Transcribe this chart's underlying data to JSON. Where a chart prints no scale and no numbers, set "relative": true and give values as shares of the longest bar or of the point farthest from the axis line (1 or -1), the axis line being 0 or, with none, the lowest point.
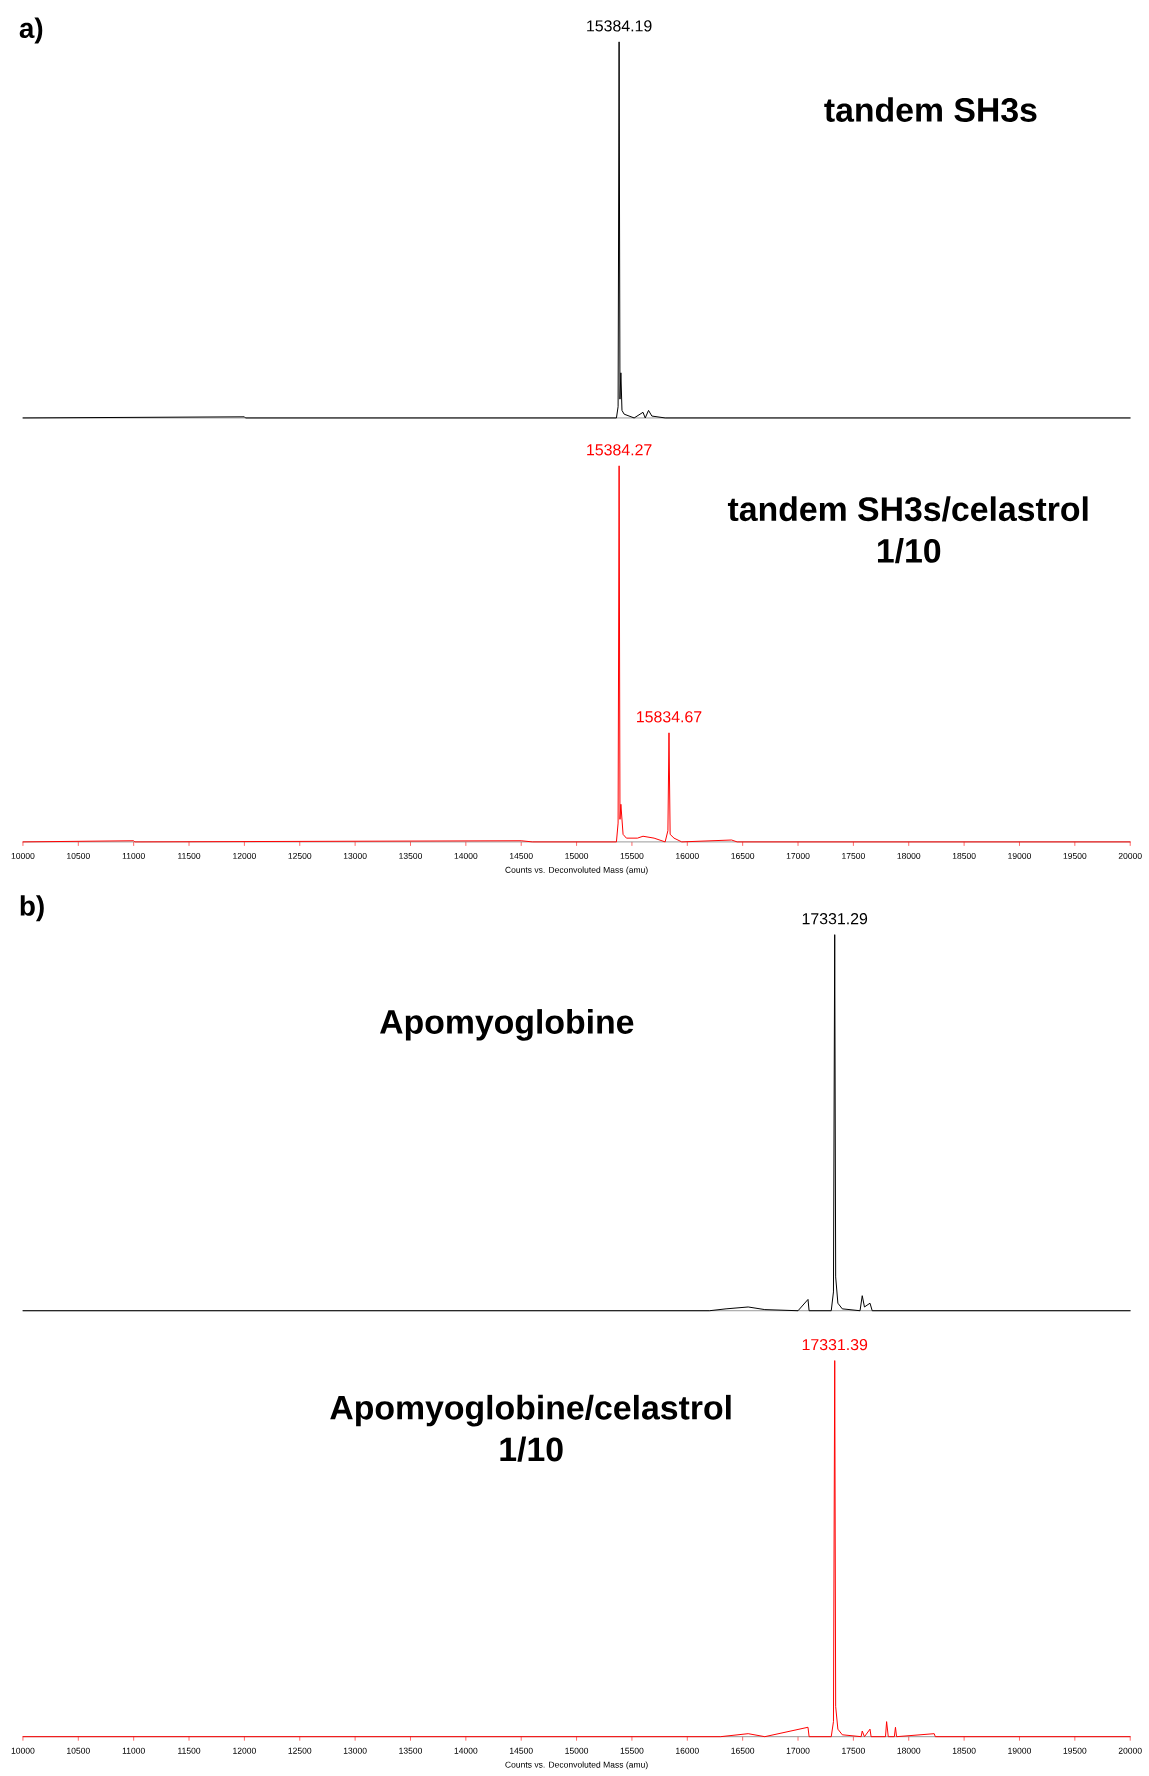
{
  "chart_data": [
    {
      "type": "line",
      "title": "tandem SH3s",
      "annotations": [
        "a)",
        {
          "text": "15384.19",
          "x": 15384.19,
          "y": 1
        }
      ],
      "relative": true,
      "xlim": [
        10000,
        20000
      ],
      "tick_labels": false,
      "color": "#000000",
      "x": [
        10000,
        12000,
        12010,
        15360,
        15375,
        15384.19,
        15392,
        15400,
        15410,
        15430,
        15520,
        15600,
        15620,
        15650,
        15680,
        15800,
        20000
      ],
      "values": [
        0,
        0.003,
        0,
        0,
        0.03,
        1,
        0.05,
        0.12,
        0.02,
        0.01,
        0,
        0.015,
        0,
        0.02,
        0.005,
        0,
        0
      ]
    },
    {
      "type": "line",
      "title": "tandem SH3s/celastrol 1/10",
      "xlabel": "Counts vs. Deconvoluted Mass (amu)",
      "annotations": [
        {
          "text": "15384.27",
          "x": 15384.27,
          "y": 1
        },
        {
          "text": "15834.67",
          "x": 15834.67,
          "y": 0.29
        }
      ],
      "relative": true,
      "xlim": [
        10000,
        20000
      ],
      "tick_labels": "x",
      "color": "#ff0000",
      "xticks": [
        10000,
        10500,
        11000,
        11500,
        12000,
        12500,
        13000,
        13500,
        14000,
        14500,
        15000,
        15500,
        16000,
        16500,
        17000,
        17500,
        18000,
        18500,
        19000,
        19500,
        20000
      ],
      "x": [
        10000,
        11000,
        11010,
        14500,
        14600,
        15360,
        15375,
        15384.27,
        15392,
        15400,
        15420,
        15450,
        15550,
        15600,
        15700,
        15800,
        15825,
        15834.67,
        15845,
        15880,
        15950,
        16400,
        16450,
        20000
      ],
      "values": [
        0,
        0.003,
        0,
        0.003,
        0,
        0,
        0.05,
        1,
        0.06,
        0.1,
        0.02,
        0.01,
        0.01,
        0.015,
        0.01,
        0,
        0.03,
        0.29,
        0.02,
        0.01,
        0,
        0.005,
        0,
        0
      ]
    },
    {
      "type": "line",
      "title": "Apomyoglobine",
      "annotations": [
        "b)",
        {
          "text": "17331.29",
          "x": 17331.29,
          "y": 1
        }
      ],
      "relative": true,
      "xlim": [
        10000,
        20000
      ],
      "tick_labels": false,
      "color": "#000000",
      "x": [
        10000,
        16200,
        16350,
        16550,
        16700,
        17000,
        17090,
        17100,
        17300,
        17320,
        17331.29,
        17340,
        17360,
        17400,
        17560,
        17580,
        17600,
        17650,
        17670,
        19000,
        20000
      ],
      "values": [
        0,
        0,
        0.005,
        0.01,
        0.003,
        0,
        0.03,
        0,
        0,
        0.05,
        1,
        0.09,
        0.02,
        0.005,
        0,
        0.04,
        0.01,
        0.02,
        0,
        0,
        0
      ]
    },
    {
      "type": "line",
      "title": "Apomyoglobine/celastrol 1/10",
      "xlabel": "Counts vs. Deconvoluted Mass (amu)",
      "annotations": [
        {
          "text": "17331.39",
          "x": 17331.39,
          "y": 1
        }
      ],
      "relative": true,
      "xlim": [
        10000,
        20000
      ],
      "tick_labels": "x",
      "color": "#ff0000",
      "xticks": [
        10000,
        10500,
        11000,
        11500,
        12000,
        12500,
        13000,
        13500,
        14000,
        14500,
        15000,
        15500,
        16000,
        16500,
        17000,
        17500,
        18000,
        18500,
        19000,
        19500,
        20000
      ],
      "x": [
        10000,
        16300,
        16550,
        16700,
        17090,
        17100,
        17300,
        17320,
        17331.39,
        17340,
        17360,
        17400,
        17570,
        17580,
        17600,
        17650,
        17660,
        17790,
        17800,
        17815,
        17870,
        17880,
        17890,
        18230,
        18240,
        20000
      ],
      "values": [
        0,
        0,
        0.008,
        0,
        0.025,
        0,
        0,
        0.04,
        1,
        0.08,
        0.02,
        0.005,
        0,
        0.015,
        0,
        0.02,
        0,
        0,
        0.04,
        0,
        0,
        0.025,
        0,
        0.008,
        0,
        0
      ]
    }
  ]
}
